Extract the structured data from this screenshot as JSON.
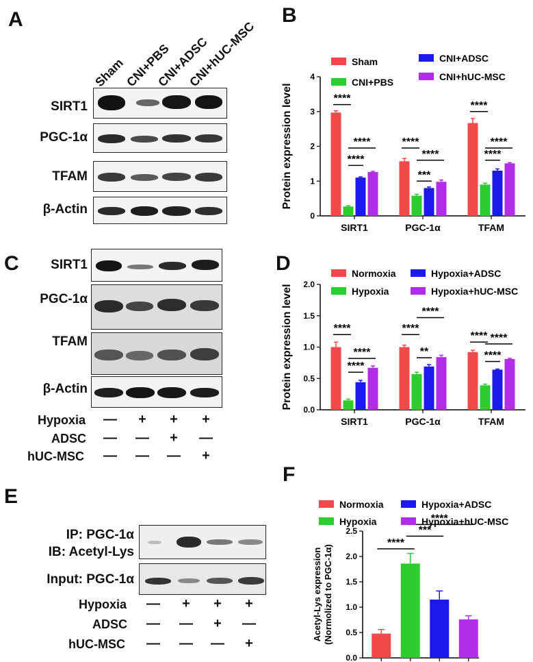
{
  "panels": {
    "A": {
      "label": "A",
      "columns": [
        "Sham",
        "CNI+PBS",
        "CNI+ADSC",
        "CNI+hUC-MSC"
      ],
      "rows": [
        "SIRT1",
        "PGC-1α",
        "TFAM",
        "β-Actin"
      ]
    },
    "C": {
      "label": "C",
      "rows": [
        "SIRT1",
        "PGC-1α",
        "TFAM",
        "β-Actin"
      ],
      "treatments": [
        {
          "name": "Hypoxia",
          "signs": [
            "—",
            "+",
            "+",
            "+"
          ]
        },
        {
          "name": "ADSC",
          "signs": [
            "—",
            "—",
            "+",
            "—"
          ]
        },
        {
          "name": "hUC-MSC",
          "signs": [
            "—",
            "—",
            "—",
            "+"
          ]
        }
      ]
    },
    "E": {
      "label": "E",
      "rows": [
        "IP: PGC-1α",
        "IB: Acetyl-Lys",
        "Input: PGC-1α"
      ],
      "treatments": [
        {
          "name": "Hypoxia",
          "signs": [
            "—",
            "+",
            "+",
            "+"
          ]
        },
        {
          "name": "ADSC",
          "signs": [
            "—",
            "—",
            "+",
            "—"
          ]
        },
        {
          "name": "hUC-MSC",
          "signs": [
            "—",
            "—",
            "—",
            "+"
          ]
        }
      ]
    },
    "B": {
      "label": "B"
    },
    "D": {
      "label": "D"
    },
    "F": {
      "label": "F"
    }
  },
  "colors": {
    "red": "#f04a4a",
    "green": "#2ecc2e",
    "blue": "#1a1aee",
    "purple": "#b22ee6"
  },
  "chart_data": [
    {
      "panel": "B",
      "type": "bar",
      "categories": [
        "SIRT1",
        "PGC-1α",
        "TFAM"
      ],
      "series": [
        {
          "name": "Sham",
          "values": [
            2.97,
            1.57,
            2.67
          ],
          "errors": [
            0.05,
            0.08,
            0.13
          ]
        },
        {
          "name": "CNI+PBS",
          "values": [
            0.27,
            0.58,
            0.9
          ],
          "errors": [
            0.02,
            0.04,
            0.04
          ]
        },
        {
          "name": "CNI+ADSC",
          "values": [
            1.1,
            0.8,
            1.3
          ],
          "errors": [
            0.02,
            0.03,
            0.05
          ]
        },
        {
          "name": "CNI+hUC-MSC",
          "values": [
            1.26,
            0.98,
            1.51
          ],
          "errors": [
            0.02,
            0.05,
            0.02
          ]
        }
      ],
      "ylabel": "Protein expression level",
      "ylim": [
        0,
        4
      ],
      "yticks": [
        "0",
        "1",
        "2",
        "3",
        "4"
      ],
      "significance": [
        "****",
        "****",
        "****",
        "****",
        "***",
        "****",
        "****",
        "****",
        "****"
      ],
      "legend": "top"
    },
    {
      "panel": "D",
      "type": "bar",
      "categories": [
        "SIRT1",
        "PGC-1α",
        "TFAM"
      ],
      "series": [
        {
          "name": "Normoxia",
          "values": [
            1.0,
            1.0,
            0.92
          ],
          "errors": [
            0.08,
            0.03,
            0.03
          ]
        },
        {
          "name": "Hypoxia",
          "values": [
            0.15,
            0.57,
            0.39
          ],
          "errors": [
            0.02,
            0.03,
            0.02
          ]
        },
        {
          "name": "Hypoxia+ADSC",
          "values": [
            0.44,
            0.69,
            0.64
          ],
          "errors": [
            0.03,
            0.03,
            0.01
          ]
        },
        {
          "name": "Hypoxia+hUC-MSC",
          "values": [
            0.67,
            0.84,
            0.81
          ],
          "errors": [
            0.03,
            0.03,
            0.01
          ]
        }
      ],
      "ylabel": "Protein expression level",
      "ylim": [
        0,
        2
      ],
      "yticks": [
        "0.0",
        "0.5",
        "1.0",
        "1.5",
        "2.0"
      ],
      "significance": [
        "****",
        "****",
        "****",
        "****",
        "**",
        "****",
        "****",
        "****"
      ],
      "legend": "top"
    },
    {
      "panel": "F",
      "type": "bar",
      "categories": [
        "Normoxia",
        "Hypoxia",
        "Hypoxia+ADSC",
        "Hypoxia+hUC-MSC"
      ],
      "values": [
        0.48,
        1.86,
        1.15,
        0.76
      ],
      "errors": [
        0.08,
        0.2,
        0.17,
        0.07
      ],
      "ylabel": "Acetyl-Lys expression (Normolized to PGC-1α)",
      "ylabel_lines": [
        "Acetyl-Lys expression",
        "(Normolized to PGC-1α)"
      ],
      "ylim": [
        0,
        2.5
      ],
      "yticks": [
        "0.0",
        "0.5",
        "1.0",
        "1.5",
        "2.0",
        "2.5"
      ],
      "significance": [
        "****",
        "***",
        "****"
      ],
      "legend": "top"
    }
  ]
}
